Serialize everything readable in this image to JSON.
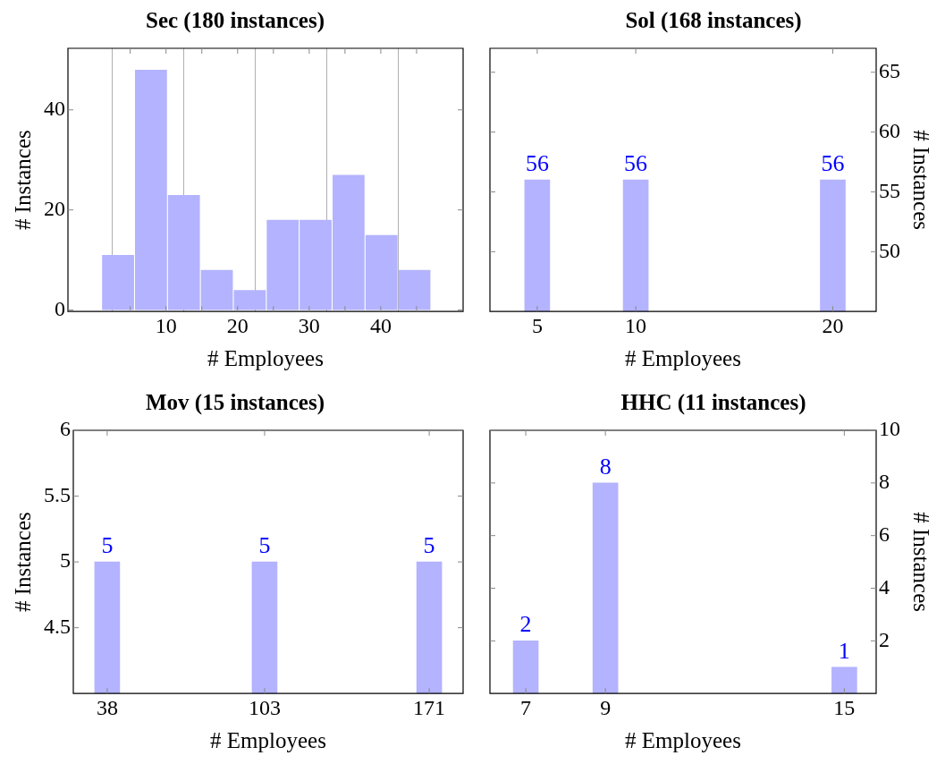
{
  "chart_data": [
    {
      "type": "histogram",
      "title": "Sec (180 instances)",
      "xlabel": "# Employees",
      "ylabel": "# Instances",
      "color": "#b3b3ff",
      "bins": [
        1,
        5.6,
        10.2,
        14.8,
        19.4,
        24,
        28.6,
        33.2,
        37.8,
        42.4,
        47
      ],
      "values": [
        11,
        48,
        23,
        8,
        4,
        18,
        18,
        27,
        15,
        8
      ],
      "xlim": [
        -3.7,
        51.5
      ],
      "xticks": [
        {
          "value": 5,
          "label": null
        },
        10,
        {
          "value": 15,
          "label": null
        },
        20,
        {
          "value": 25,
          "label": null
        },
        30,
        {
          "value": 35,
          "label": null
        },
        40,
        {
          "value": 45,
          "label": null
        }
      ],
      "ylim": [
        -0.3,
        52.3
      ],
      "yticks": [
        0,
        20,
        40
      ],
      "grid": "x"
    },
    {
      "type": "bar",
      "title": "Sol (168 instances)",
      "xlabel": "# Employees",
      "y2label": "# Instances",
      "x": [
        5,
        10,
        20
      ],
      "xlim": [
        2.6,
        22.2
      ],
      "xticks": [
        5,
        10,
        20
      ],
      "series": [
        {
          "color": "#b3b3ff",
          "axis": "y2",
          "values": [
            56,
            56,
            56
          ]
        }
      ],
      "y2lim": [
        45,
        67
      ],
      "y2ticks": [
        50,
        55,
        60,
        65
      ],
      "data_labels": true
    },
    {
      "type": "bar",
      "title": "Mov (15 instances)",
      "xlabel": "# Employees",
      "ylabel": "# Instances",
      "x": [
        38,
        103,
        171
      ],
      "xlim": [
        24,
        185
      ],
      "xticks": [
        38,
        103,
        171
      ],
      "series": [
        {
          "color": "#b3b3ff",
          "values": [
            5,
            5,
            5
          ]
        }
      ],
      "ylim": [
        4,
        6
      ],
      "yticks": [
        4.5,
        5,
        5.5,
        6
      ],
      "data_labels": true
    },
    {
      "type": "bar",
      "title": "HHC (11 instances)",
      "xlabel": "# Employees",
      "y2label": "# Instances",
      "x": [
        7,
        9,
        15
      ],
      "xlim": [
        6.1,
        15.8
      ],
      "xticks": [
        7,
        9,
        15
      ],
      "series": [
        {
          "color": "#b3b3ff",
          "axis": "y2",
          "values": [
            2,
            8,
            1
          ]
        }
      ],
      "y2lim": [
        0,
        10
      ],
      "y2ticks": [
        2,
        4,
        6,
        8,
        10
      ],
      "data_labels": true
    }
  ]
}
